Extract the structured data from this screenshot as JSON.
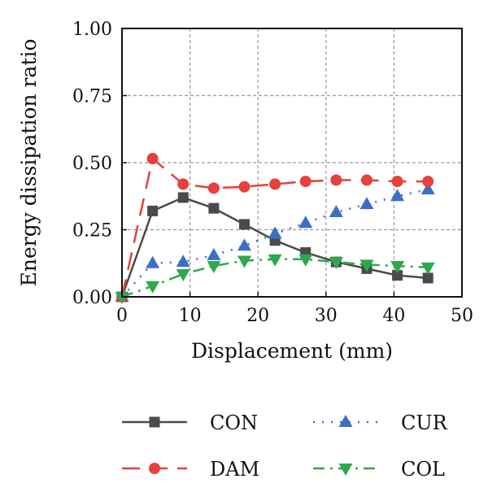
{
  "chart_data": {
    "type": "line",
    "xlabel": "Displacement (mm)",
    "ylabel": "Energy dissipation ratio",
    "xlim": [
      0,
      50
    ],
    "ylim": [
      0,
      1
    ],
    "xticks": [
      0,
      10,
      20,
      30,
      40,
      50
    ],
    "xtick_labels": [
      "0",
      "10",
      "20",
      "30",
      "40",
      "50"
    ],
    "yticks": [
      0,
      0.25,
      0.5,
      0.75,
      1.0
    ],
    "ytick_labels": [
      "0.00",
      "0.25",
      "0.50",
      "0.75",
      "1.00"
    ],
    "grid": true,
    "legend_position": "bottom",
    "series": [
      {
        "name": "CON",
        "color": "#4a4a4a",
        "marker": "square",
        "line": "solid",
        "x": [
          0,
          4.5,
          9,
          13.5,
          18,
          22.5,
          27,
          31.5,
          36,
          40.5,
          45
        ],
        "y": [
          0.0,
          0.32,
          0.37,
          0.33,
          0.27,
          0.21,
          0.165,
          0.13,
          0.105,
          0.08,
          0.07
        ]
      },
      {
        "name": "CUR",
        "color": "#3b6fc4",
        "marker": "triangle-up",
        "line": "dotted",
        "x": [
          0,
          4.5,
          9,
          13.5,
          18,
          22.5,
          27,
          31.5,
          36,
          40.5,
          45
        ],
        "y": [
          0.0,
          0.125,
          0.13,
          0.155,
          0.19,
          0.235,
          0.275,
          0.315,
          0.345,
          0.375,
          0.4
        ]
      },
      {
        "name": "DAM",
        "color": "#e8403a",
        "marker": "circle",
        "line": "dashed",
        "x": [
          0,
          4.5,
          9,
          13.5,
          18,
          22.5,
          27,
          31.5,
          36,
          40.5,
          45
        ],
        "y": [
          0.0,
          0.515,
          0.42,
          0.405,
          0.41,
          0.42,
          0.43,
          0.435,
          0.435,
          0.43,
          0.43
        ]
      },
      {
        "name": "COL",
        "color": "#2ea84a",
        "marker": "triangle-down",
        "line": "dashdot",
        "x": [
          0,
          4.5,
          9,
          13.5,
          18,
          22.5,
          27,
          31.5,
          36,
          40.5,
          45
        ],
        "y": [
          0.0,
          0.04,
          0.085,
          0.115,
          0.135,
          0.14,
          0.14,
          0.13,
          0.12,
          0.115,
          0.11
        ]
      }
    ]
  }
}
